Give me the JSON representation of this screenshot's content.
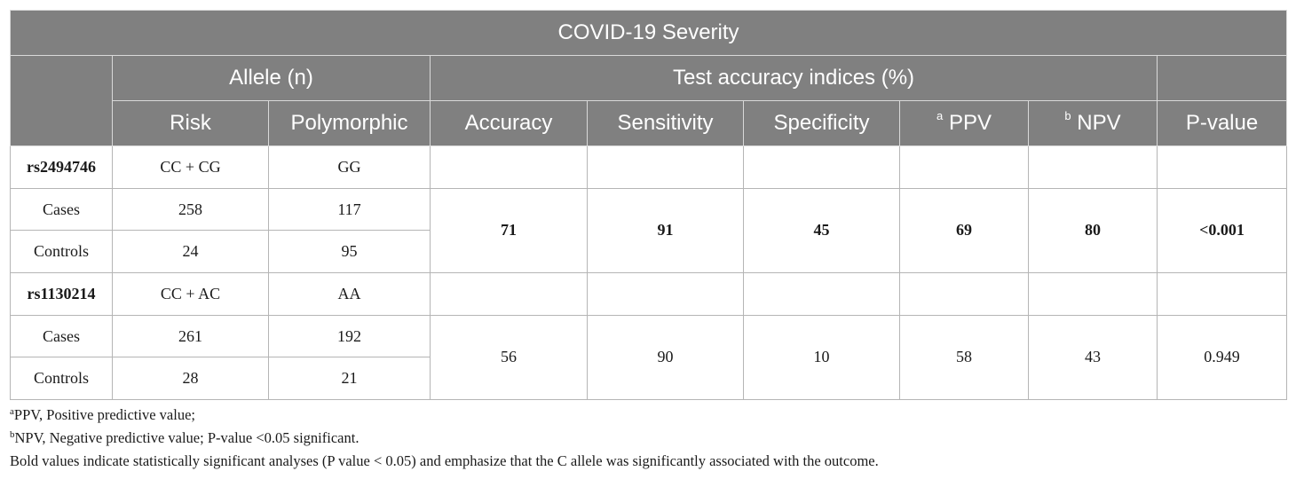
{
  "table": {
    "title": "COVID-19 Severity",
    "group_allele": "Allele (n)",
    "group_test": "Test accuracy indices (%)",
    "columns": {
      "risk": "Risk",
      "polymorphic": "Polymorphic",
      "accuracy": "Accuracy",
      "sensitivity": "Sensitivity",
      "specificity": "Specificity",
      "ppv_mark": "a",
      "ppv": "PPV",
      "npv_mark": "b",
      "npv": "NPV",
      "pvalue": "P-value"
    },
    "snp1": {
      "name": "rs2494746",
      "risk": "CC + CG",
      "polymorphic": "GG",
      "cases_label": "Cases",
      "cases_risk": "258",
      "cases_poly": "117",
      "controls_label": "Controls",
      "controls_risk": "24",
      "controls_poly": "95",
      "accuracy": "71",
      "sensitivity": "91",
      "specificity": "45",
      "ppv": "69",
      "npv": "80",
      "pvalue": "<0.001"
    },
    "snp2": {
      "name": "rs1130214",
      "risk": "CC + AC",
      "polymorphic": "AA",
      "cases_label": "Cases",
      "cases_risk": "261",
      "cases_poly": "192",
      "controls_label": "Controls",
      "controls_risk": "28",
      "controls_poly": "21",
      "accuracy": "56",
      "sensitivity": "90",
      "specificity": "10",
      "ppv": "58",
      "npv": "43",
      "pvalue": "0.949"
    }
  },
  "footnotes": {
    "a_mark": "a",
    "a_text": "PPV, Positive predictive value;",
    "b_mark": "b",
    "b_text": "NPV, Negative predictive value; P-value <0.05 significant.",
    "bold_note": "Bold values indicate statistically significant analyses (P value < 0.05) and emphasize that the C allele was significantly associated with the outcome."
  }
}
